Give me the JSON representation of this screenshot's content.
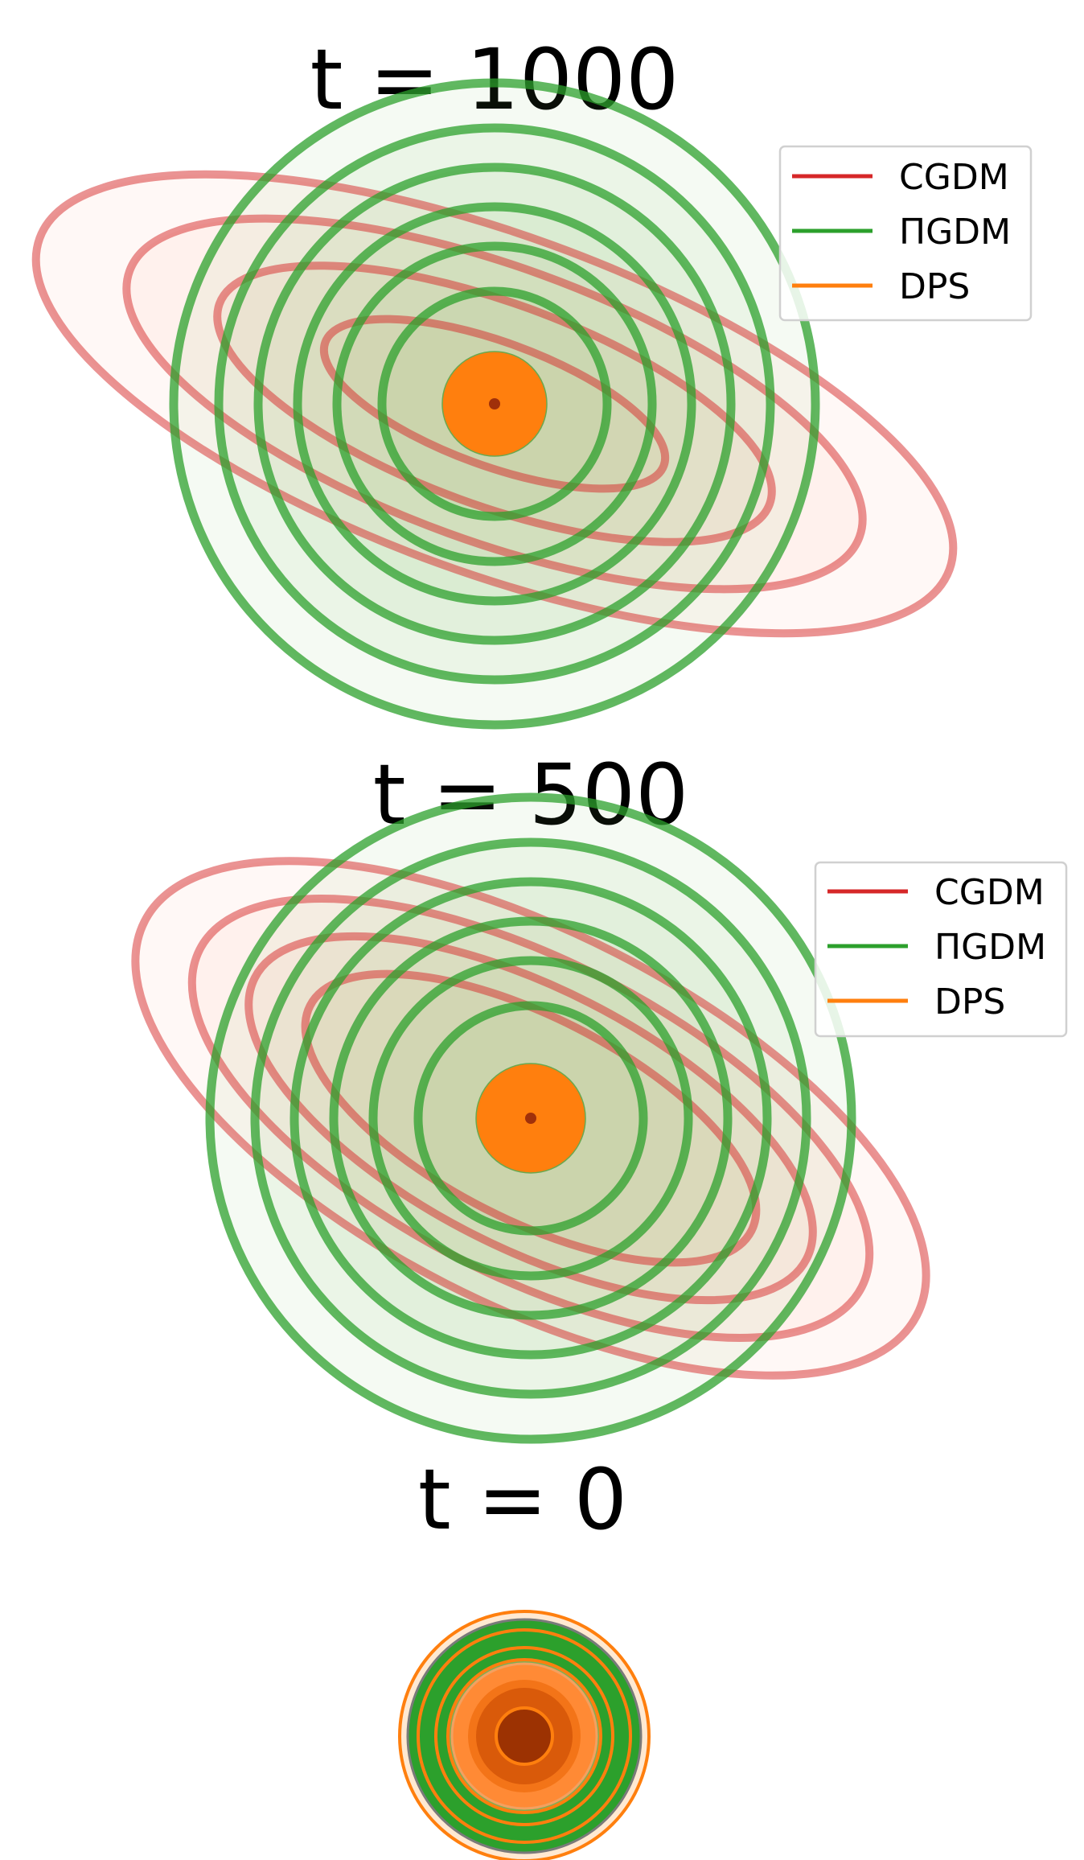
{
  "chart_data": [
    {
      "type": "contour",
      "title": "t = 1000",
      "legend": {
        "placement": "top-right",
        "entries": [
          {
            "label": "CGDM",
            "color": "#d62728"
          },
          {
            "label": "ΠGDM",
            "color": "#2ca02c"
          },
          {
            "label": "DPS",
            "color": "#ff7f0e"
          }
        ]
      },
      "series": [
        {
          "name": "CGDM",
          "color": "#d62728",
          "shape": "ellipse",
          "rotation_deg": 20,
          "levels": [
            [
              0.55,
              1.6
            ],
            [
              0.9,
              2.6
            ],
            [
              1.22,
              3.45
            ],
            [
              1.5,
              4.3
            ]
          ]
        },
        {
          "name": "ΠGDM",
          "color": "#2ca02c",
          "shape": "circle",
          "levels": [
            1.0,
            1.4,
            1.75,
            2.1,
            2.45,
            2.85
          ]
        },
        {
          "name": "DPS",
          "color": "#ff7f0e",
          "shape": "filled-disk",
          "radius": 0.65
        }
      ],
      "grid": false,
      "axes_visible": false
    },
    {
      "type": "contour",
      "title": "t = 500",
      "legend": {
        "placement": "top-right",
        "entries": [
          {
            "label": "CGDM",
            "color": "#d62728"
          },
          {
            "label": "ΠGDM",
            "color": "#2ca02c"
          },
          {
            "label": "DPS",
            "color": "#ff7f0e"
          }
        ]
      },
      "series": [
        {
          "name": "CGDM",
          "color": "#d62728",
          "shape": "ellipse",
          "rotation_deg": 27,
          "levels": [
            [
              0.9,
              2.2
            ],
            [
              1.15,
              2.75
            ],
            [
              1.4,
              3.3
            ],
            [
              1.65,
              3.85
            ]
          ]
        },
        {
          "name": "ΠGDM",
          "color": "#2ca02c",
          "shape": "circle",
          "levels": [
            1.0,
            1.4,
            1.75,
            2.1,
            2.45,
            2.85
          ]
        },
        {
          "name": "DPS",
          "color": "#ff7f0e",
          "shape": "filled-disk",
          "radius": 0.68
        }
      ],
      "grid": false,
      "axes_visible": false
    },
    {
      "type": "contour",
      "title": "t = 0",
      "series": [
        {
          "name": "CGDM",
          "color": "#d62728",
          "shape": "circle",
          "levels": [
            0.6,
            0.9
          ]
        },
        {
          "name": "ΠGDM",
          "color": "#2ca02c",
          "shape": "circle",
          "levels": [
            0.95,
            1.45
          ]
        },
        {
          "name": "DPS",
          "color": "#ff7f0e",
          "shape": "circle",
          "levels": [
            0.35,
            0.7,
            1.1,
            1.55
          ]
        }
      ],
      "grid": false,
      "axes_visible": false
    }
  ]
}
